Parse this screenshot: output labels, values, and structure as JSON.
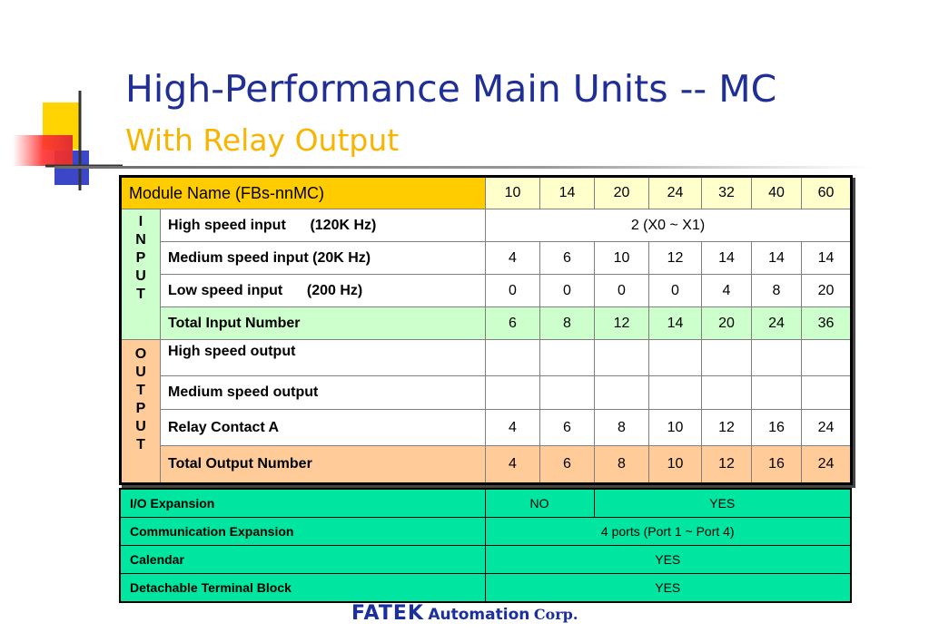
{
  "colors": {
    "title": "#1f2f96",
    "subtitle": "#f7b400",
    "header_name_bg": "#ffcc00",
    "header_value_bg": "#ffffcc",
    "input_bg": "#ccffcc",
    "output_bg": "#ffcc99",
    "feature_bg": "#00e6a0",
    "brand": "#1a2fa0"
  },
  "title": {
    "main": "High-Performance Main Units -- MC",
    "sub": "With Relay Output"
  },
  "main_table": {
    "header_label": "Module Name (FBs-nnMC)",
    "models": [
      "10",
      "14",
      "20",
      "24",
      "32",
      "40",
      "60"
    ],
    "input_category": [
      "I",
      "N",
      "P",
      "U",
      "T"
    ],
    "output_category": [
      "O",
      "U",
      "T",
      "P",
      "U",
      "T"
    ],
    "input_rows": [
      {
        "label": "High speed input      (120K Hz)",
        "span_value": "2   (X0 ~ X1)"
      },
      {
        "label": "Medium speed input (20K Hz)",
        "values": [
          "4",
          "6",
          "10",
          "12",
          "14",
          "14",
          "14"
        ]
      },
      {
        "label": "Low speed input      (200 Hz)",
        "values": [
          "0",
          "0",
          "0",
          "0",
          "4",
          "8",
          "20"
        ]
      },
      {
        "label": "Total Input Number",
        "values": [
          "6",
          "8",
          "12",
          "14",
          "20",
          "24",
          "36"
        ]
      }
    ],
    "output_rows": [
      {
        "label": "High speed output",
        "values": [
          "",
          "",
          "",
          "",
          "",
          "",
          ""
        ]
      },
      {
        "label": "Medium speed output",
        "values": [
          "",
          "",
          "",
          "",
          "",
          "",
          ""
        ]
      },
      {
        "label": "Relay Contact A",
        "values": [
          "4",
          "6",
          "8",
          "10",
          "12",
          "16",
          "24"
        ]
      },
      {
        "label": "Total Output Number",
        "values": [
          "4",
          "6",
          "8",
          "10",
          "12",
          "16",
          "24"
        ]
      }
    ]
  },
  "features": {
    "io_expansion": {
      "label": "I/O Expansion",
      "value_a": "NO",
      "value_b": "YES"
    },
    "communication": {
      "label": "Communication Expansion",
      "value": "4 ports (Port 1 ~ Port 4)"
    },
    "calendar": {
      "label": "Calendar",
      "value": "YES"
    },
    "terminal_block": {
      "label": "Detachable Terminal Block",
      "value": "YES"
    }
  },
  "footer": {
    "brand": "FATEK",
    "automation": "Automation",
    "corp": "Corp."
  }
}
